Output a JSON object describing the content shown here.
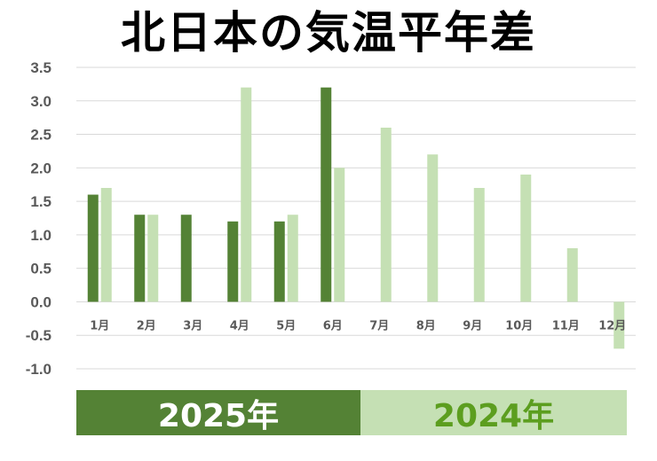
{
  "chart_data": {
    "type": "bar",
    "title": "北日本の気温平年差",
    "categories": [
      "1月",
      "2月",
      "3月",
      "4月",
      "5月",
      "6月",
      "7月",
      "8月",
      "9月",
      "10月",
      "11月",
      "12月"
    ],
    "series": [
      {
        "name": "2025年",
        "color": "#548235",
        "values": [
          1.6,
          1.3,
          1.3,
          1.2,
          1.2,
          3.2,
          null,
          null,
          null,
          null,
          null,
          null
        ]
      },
      {
        "name": "2024年",
        "color": "#c5e0b4",
        "values": [
          1.7,
          1.3,
          null,
          3.2,
          1.3,
          2.0,
          2.6,
          2.2,
          1.7,
          1.9,
          0.8,
          -0.7
        ]
      }
    ],
    "ylim": [
      -1.0,
      3.5
    ],
    "yticks": [
      "3.5",
      "3.0",
      "2.5",
      "2.0",
      "1.5",
      "1.0",
      "0.5",
      "0.0",
      "-0.5",
      "-1.0"
    ],
    "grid": true,
    "legend_position": "bottom"
  }
}
